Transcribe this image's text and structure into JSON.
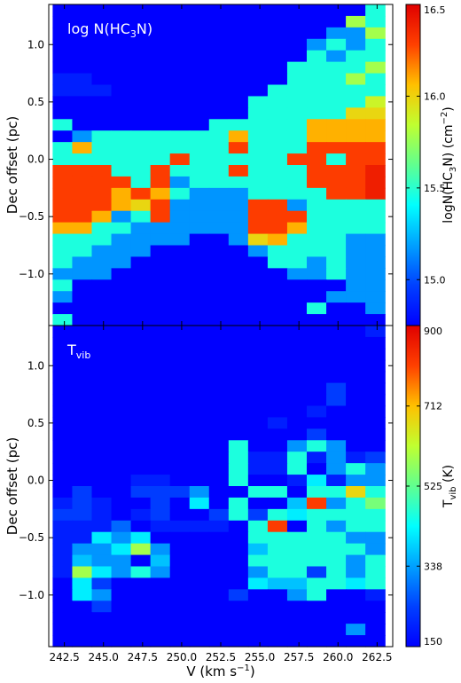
{
  "chart_data": [
    {
      "type": "heatmap",
      "panel_label": "log N(HC3N)",
      "panel_label_main": "log N(HC",
      "panel_label_sub": "3",
      "panel_label_end": "N)",
      "xlabel": "",
      "ylabel": "Dec offset (pc)",
      "xlim": [
        241.5,
        263.5
      ],
      "ylim": [
        -1.45,
        1.35
      ],
      "yticks": [
        "1.0",
        "0.5",
        "0.0",
        "−0.5",
        "−1.0"
      ],
      "yticks_values": [
        1.0,
        0.5,
        0.0,
        -0.5,
        -1.0
      ],
      "colormap": "jet",
      "colorbar": {
        "label": "logN(HC3N) (cm−2)",
        "label_pre": "logN(HC",
        "label_sub": "3",
        "label_mid": "N) (cm",
        "label_sup": "−2",
        "label_end": ")",
        "min": 14.75,
        "max": 16.5,
        "ticks": [
          "16.5",
          "16.0",
          "15.5",
          "15.0"
        ],
        "ticks_values": [
          16.5,
          16.0,
          15.5,
          15.0
        ]
      },
      "grid": {
        "x_start": 241.75,
        "x_step": 1.25,
        "columns": 17,
        "y_top": 1.35,
        "y_step": 0.1,
        "rows": 28,
        "values": [
          "AAAAAAAAAAAAAAAAH",
          "AAAAAAAAAAAAAAAKH",
          "AAAAAAAAAAAAAAEEK",
          "AAAAAAAAAAAAAEHEH",
          "AAAAAAAAAAAAAHEHH",
          "AAAAAAAAAAAAHHHHK",
          "BBAAAAAAAAAAHHHKH",
          "BBBAAAAAAAAHHHHHH",
          "AAAAAAAAAAHHHHHHL",
          "AAAAAAAAAAHHHHHMM",
          "HAAAAAAAHHHHHNNNN",
          "AEHHHHHHHNHHHNNNN",
          "HNHHHHHHHPHHHPPPP",
          "HHHHHHPHHHHHPPHPP",
          "PPPHHPHHHPHHHPPPQ",
          "PPPPHPEHHHHHHPPPQ",
          "PPPNPNHEEEHHHHPPQ",
          "PPPNMPEEEEPPEHHHH",
          "PPNEHPEEEEPPPHHHH",
          "NNHHEEEEEEPPNHHHH",
          "HHHEEEEAAEMNHHHEE",
          "HHEEEAAAAAEHHHHEE",
          "HEEEAAAAAAAHHEHEE",
          "EEEAAAAAAAAAEEHEE",
          "HAAAAAAAAAAAAAAEE",
          "EAAAAAAAAAAAAAEEE",
          "AAAAAAAAAAAAAHAAE",
          "HAAAAAAAAAAAAAAAA"
        ]
      }
    },
    {
      "type": "heatmap",
      "panel_label": "Tvib",
      "panel_label_main": "T",
      "panel_label_sub": "vib",
      "xlabel": "V (km s−1)",
      "xlabel_main": "V (km s",
      "xlabel_sup": "−1",
      "xlabel_end": ")",
      "ylabel": "Dec offset (pc)",
      "xlim": [
        241.5,
        263.5
      ],
      "ylim": [
        -1.45,
        1.35
      ],
      "xticks": [
        "242.5",
        "245.0",
        "247.5",
        "250.0",
        "252.5",
        "255.0",
        "257.5",
        "260.0",
        "262.5"
      ],
      "xticks_values": [
        242.5,
        245.0,
        247.5,
        250.0,
        252.5,
        255.0,
        257.5,
        260.0,
        262.5
      ],
      "yticks": [
        "1.0",
        "0.5",
        "0.0",
        "−0.5",
        "−1.0"
      ],
      "yticks_values": [
        1.0,
        0.5,
        0.0,
        -0.5,
        -1.0
      ],
      "colormap": "jet",
      "colorbar": {
        "label": "Tvib (K)",
        "label_pre": "T",
        "label_sub": "vib",
        "label_end": " (K)",
        "min": 150,
        "max": 900,
        "ticks": [
          "900",
          "712",
          "525",
          "338",
          "150"
        ],
        "ticks_values": [
          900,
          712,
          525,
          338,
          150
        ]
      },
      "grid": {
        "x_start": 241.75,
        "x_step": 1.25,
        "columns": 17,
        "y_top": 1.35,
        "y_step": 0.1,
        "rows": 28,
        "values": [
          "AAAAAAAAAAAAAAAAB",
          "AAAAAAAAAAAAAAAAA",
          "AAAAAAAAAAAAAAAAA",
          "AAAAAAAAAAAAAAAAA",
          "AAAAAAAAAAAAAAAAA",
          "AAAAAAAAAAAAAACAA",
          "AAAAAAAAAAAAAACAA",
          "AAAAAAAAAAAAABAAA",
          "AAAAAAAAAAABAAAAA",
          "AAAAAAAAAAAAACAAA",
          "AAAAAAAAAHAAEHEAA",
          "AAAAAAAAAHBBHBEBC",
          "AAAAAAAAAHBBHAEHE",
          "AAAABBAAAHAABGBEE",
          "ACAACCCEAAHHAHHMH",
          "BCBAACAGAHAAFPEHJ",
          "CCBABCAACHCHGHHHH",
          "BBBDABBBBAHPAHEHH",
          "BBGEGAAAAAHHHHHEE",
          "BEEGKEAAAAFHHHHHE",
          "BFEEAFAAAAHHHHHEH",
          "BKGEHEAAAAEHHCHEH",
          "AGCAAAAAAAGFFHHGH",
          "AGEAAAAAACAAEHAAB",
          "AACAAAAAAAAAAAAAA",
          "AAAAAAAAAAAAAAAAA",
          "AAAAAAAAAAAAAAAEA",
          "AAAAAAAAAAAAAAAAA"
        ]
      }
    }
  ]
}
